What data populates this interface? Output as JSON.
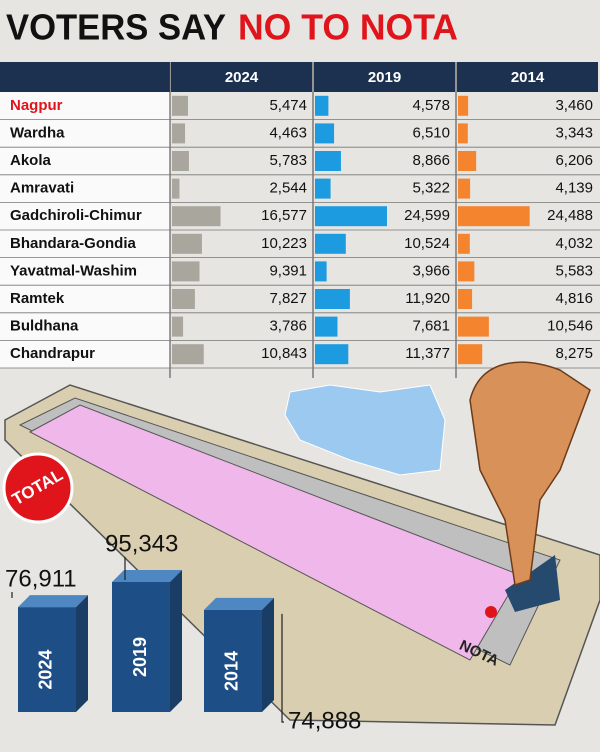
{
  "title": "VOTERS SAY",
  "title_highlight": "NO TO NOTA",
  "chart_data": [
    {
      "type": "tablebar",
      "categories": [
        "Nagpur",
        "Wardha",
        "Akola",
        "Amravati",
        "Gadchiroli-Chimur",
        "Bhandara-Gondia",
        "Yavatmal-Washim",
        "Ramtek",
        "Buldhana",
        "Chandrapur"
      ],
      "highlight_color": "#e0141b",
      "series": [
        {
          "name": "2024",
          "color": "#a9a69d",
          "values": [
            5474,
            4463,
            5783,
            2544,
            16577,
            10223,
            9391,
            7827,
            3786,
            10843
          ],
          "value_labels": [
            "5,474",
            "4,463",
            "5,783",
            "2,544",
            "16,577",
            "10,223",
            "9,391",
            "7,827",
            "3,786",
            "10,843"
          ]
        },
        {
          "name": "2019",
          "color": "#1c9be0",
          "values": [
            4578,
            6510,
            8866,
            5322,
            24599,
            10524,
            3966,
            11920,
            7681,
            11377
          ],
          "value_labels": [
            "4,578",
            "6,510",
            "8,866",
            "5,322",
            "24,599",
            "10,524",
            "3,966",
            "11,920",
            "7,681",
            "11,377"
          ]
        },
        {
          "name": "2014",
          "color": "#f5842f",
          "values": [
            3460,
            3343,
            6206,
            4139,
            24488,
            4032,
            5583,
            4816,
            10546,
            8275
          ],
          "value_labels": [
            "3,460",
            "3,343",
            "6,206",
            "4,139",
            "24,488",
            "4,032",
            "5,583",
            "4,816",
            "10,546",
            "8,275"
          ]
        }
      ]
    },
    {
      "type": "column",
      "title": "TOTAL",
      "categories": [
        "2024",
        "2019",
        "2014"
      ],
      "values": [
        76911,
        95343,
        74888
      ],
      "value_labels": [
        "76,911",
        "95,343",
        "74,888"
      ],
      "color": "#1d4f86"
    }
  ],
  "machine_label": "NOTA"
}
